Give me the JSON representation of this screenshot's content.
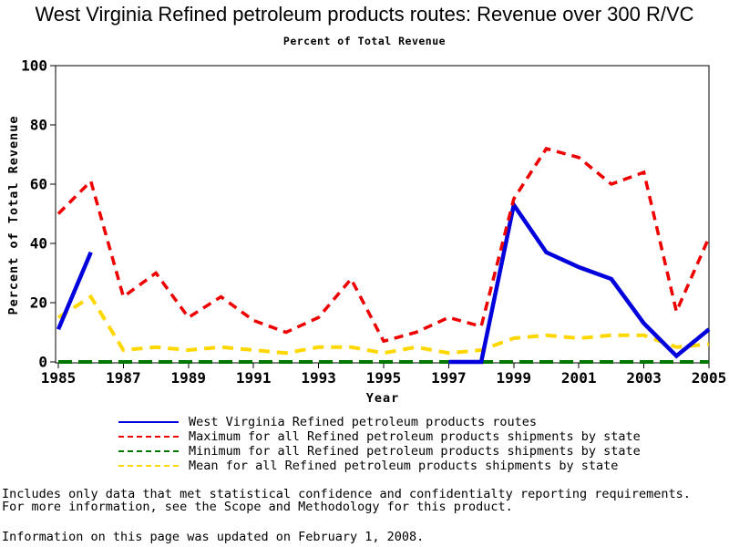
{
  "footer": {
    "note_line1": "Includes only data that met statistical confidence and confidentialty reporting requirements.",
    "note_line2": "For more information, see the Scope and Methodology for this product.",
    "updated_line": "Information on this page was updated on February 1, 2008."
  },
  "chart_data": {
    "type": "line",
    "title": "West Virginia Refined petroleum products routes: Revenue over 300 R/VC",
    "subtitle": "Percent of Total Revenue",
    "xlabel": "Year",
    "ylabel": "Percent of Total Revenue",
    "xlim": [
      1985,
      2005
    ],
    "ylim": [
      0,
      100
    ],
    "xticks": [
      1985,
      1987,
      1989,
      1991,
      1993,
      1995,
      1997,
      1999,
      2001,
      2003,
      2005
    ],
    "yticks": [
      0,
      20,
      40,
      60,
      80,
      100
    ],
    "grid": false,
    "legend_position": "bottom",
    "years": [
      1985,
      1986,
      1987,
      1988,
      1989,
      1990,
      1991,
      1992,
      1993,
      1994,
      1995,
      1996,
      1997,
      1998,
      1999,
      2000,
      2001,
      2002,
      2003,
      2004,
      2005
    ],
    "series": [
      {
        "name": "West Virginia Refined petroleum products routes",
        "color": "#0000DD",
        "style": "solid",
        "values": [
          11,
          37,
          null,
          null,
          null,
          null,
          null,
          null,
          null,
          null,
          null,
          null,
          0,
          0,
          53,
          37,
          32,
          28,
          13,
          2,
          11
        ]
      },
      {
        "name": "Maximum for all Refined petroleum products shipments by state",
        "color": "#EE0000",
        "style": "dashed",
        "values": [
          50,
          61,
          22,
          30,
          15,
          22,
          14,
          10,
          15,
          28,
          7,
          10,
          15,
          12,
          55,
          72,
          69,
          60,
          64,
          17,
          42
        ]
      },
      {
        "name": "Minimum for all Refined petroleum products shipments by state",
        "color": "#007700",
        "style": "dashed",
        "values": [
          0,
          0,
          0,
          0,
          0,
          0,
          0,
          0,
          0,
          0,
          0,
          0,
          0,
          0,
          0,
          0,
          0,
          0,
          0,
          0,
          0
        ]
      },
      {
        "name": "Mean for all Refined petroleum products shipments by state",
        "color": "#FFD700",
        "style": "dashed",
        "values": [
          15,
          22,
          4,
          5,
          4,
          5,
          4,
          3,
          5,
          5,
          3,
          5,
          3,
          4,
          8,
          9,
          8,
          9,
          9,
          5,
          6
        ]
      }
    ]
  }
}
